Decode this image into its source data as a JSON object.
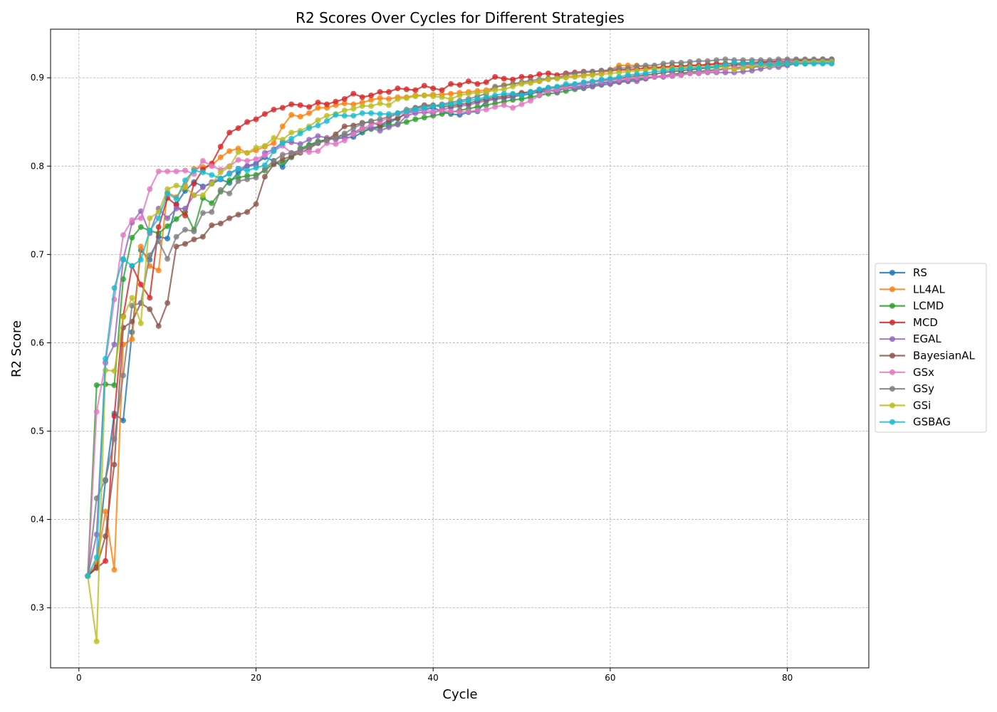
{
  "chart_data": {
    "type": "line",
    "title": "R2 Scores Over Cycles for Different Strategies",
    "xlabel": "Cycle",
    "ylabel": "R2 Score",
    "xlim": [
      -3.2,
      89.2
    ],
    "ylim": [
      0.232,
      0.955
    ],
    "xticks": [
      0,
      20,
      40,
      60,
      80
    ],
    "yticks": [
      0.3,
      0.4,
      0.5,
      0.6,
      0.7,
      0.8,
      0.9
    ],
    "grid": true,
    "legend": "center-right-outside",
    "x": {
      "start": 1,
      "end": 85
    },
    "series": [
      {
        "name": "RS",
        "color": "#1f77b4",
        "head": [
          0.336,
          0.348,
          0.444,
          0.52,
          0.512,
          0.612,
          0.705,
          0.694,
          0.72,
          0.718,
          0.757,
          0.772,
          0.782,
          0.777,
          0.78,
          0.785,
          0.781,
          0.793,
          0.8,
          0.803,
          0.81,
          0.806,
          0.799,
          0.812,
          0.818,
          0.823,
          0.827,
          0.83,
          0.832,
          0.832,
          0.833,
          0.838,
          0.843,
          0.845,
          0.849,
          0.854,
          0.86,
          0.862,
          0.864,
          0.866,
          0.862,
          0.859,
          0.858,
          0.861,
          0.862
        ],
        "tail": [
          0.874,
          0.917
        ]
      },
      {
        "name": "LL4AL",
        "color": "#ff7f0e",
        "head": [
          0.336,
          0.35,
          0.409,
          0.343,
          0.598,
          0.604,
          0.709,
          0.687,
          0.682,
          0.77,
          0.765,
          0.778,
          0.797,
          0.799,
          0.801,
          0.81,
          0.817,
          0.82,
          0.815,
          0.818,
          0.822,
          0.826,
          0.845,
          0.858,
          0.856,
          0.86,
          0.866,
          0.866,
          0.869,
          0.871,
          0.87,
          0.872,
          0.875,
          0.877,
          0.876,
          0.878,
          0.878,
          0.88,
          0.88,
          0.881,
          0.881,
          0.882,
          0.883,
          0.884,
          0.885,
          0.886,
          0.889,
          0.892,
          0.893,
          0.894,
          0.895,
          0.896,
          0.899,
          0.9,
          0.901,
          0.902,
          0.903,
          0.904,
          0.905,
          0.909,
          0.914,
          0.914,
          0.914,
          0.912
        ],
        "tail": [
          0.912,
          0.918
        ]
      },
      {
        "name": "LCMD",
        "color": "#2ca02c",
        "head": [
          0.336,
          0.552,
          0.553,
          0.552,
          0.672,
          0.719,
          0.731,
          0.727,
          0.724,
          0.732,
          0.74,
          0.748,
          0.728,
          0.764,
          0.758,
          0.771,
          0.784,
          0.787,
          0.789,
          0.79,
          0.795,
          0.803,
          0.804,
          0.81,
          0.82,
          0.824
        ],
        "tail": [
          0.828,
          0.919
        ]
      },
      {
        "name": "MCD",
        "color": "#d62728",
        "head": [
          0.336,
          0.345,
          0.353,
          0.517,
          0.63,
          0.687,
          0.666,
          0.651,
          0.731,
          0.764,
          0.756,
          0.744,
          0.78,
          0.796,
          0.803,
          0.822,
          0.838,
          0.843,
          0.85,
          0.853,
          0.859,
          0.864,
          0.866,
          0.87,
          0.869,
          0.867,
          0.872,
          0.87,
          0.873,
          0.876,
          0.882,
          0.878,
          0.88,
          0.884,
          0.884,
          0.888,
          0.887,
          0.886,
          0.891,
          0.888,
          0.886,
          0.893,
          0.892,
          0.896,
          0.893,
          0.895,
          0.901,
          0.899,
          0.898,
          0.901,
          0.901,
          0.904,
          0.905,
          0.903,
          0.905,
          0.906,
          0.907,
          0.907,
          0.908
        ],
        "tail": [
          0.908,
          0.92
        ]
      },
      {
        "name": "EGAL",
        "color": "#9467bd",
        "head": [
          0.336,
          0.383,
          0.578,
          0.598,
          0.694,
          0.736,
          0.749,
          0.724,
          0.752,
          0.741,
          0.752,
          0.752,
          0.767,
          0.776,
          0.782,
          0.786,
          0.792,
          0.797,
          0.8,
          0.801,
          0.815,
          0.819,
          0.827,
          0.827,
          0.825,
          0.83,
          0.834,
          0.832,
          0.83,
          0.833,
          0.838,
          0.843,
          0.843,
          0.84,
          0.844,
          0.847,
          0.857,
          0.86,
          0.861,
          0.86,
          0.864,
          0.866,
          0.868,
          0.869,
          0.872,
          0.874,
          0.876,
          0.877,
          0.878,
          0.882,
          0.884,
          0.886,
          0.886,
          0.884,
          0.889,
          0.888,
          0.889,
          0.89,
          0.892,
          0.893,
          0.895,
          0.896,
          0.896,
          0.899,
          0.901,
          0.901,
          0.902,
          0.903,
          0.905,
          0.905,
          0.906,
          0.906,
          0.906,
          0.906,
          0.907,
          0.908,
          0.91,
          0.912
        ],
        "tail": [
          0.912,
          0.92
        ]
      },
      {
        "name": "BayesianAL",
        "color": "#8c564b",
        "head": [
          0.336,
          0.346,
          0.381,
          0.462,
          0.617,
          0.624,
          0.645,
          0.638,
          0.619,
          0.645,
          0.709,
          0.712,
          0.717,
          0.72,
          0.733,
          0.735,
          0.741,
          0.745,
          0.748,
          0.757,
          0.788,
          0.802,
          0.808,
          0.811,
          0.815,
          0.82,
          0.826,
          0.83,
          0.836,
          0.845,
          0.846,
          0.849,
          0.85,
          0.846,
          0.852,
          0.854,
          0.86,
          0.866,
          0.869,
          0.869,
          0.867,
          0.868,
          0.87,
          0.871,
          0.874
        ],
        "tail": [
          0.876,
          0.921
        ]
      },
      {
        "name": "GSx",
        "color": "#e377c2",
        "head": [
          0.336,
          0.522,
          0.577,
          0.649,
          0.722,
          0.739,
          0.741,
          0.774,
          0.794,
          0.794,
          0.794,
          0.795,
          0.791,
          0.806,
          0.8,
          0.796,
          0.8,
          0.807,
          0.806,
          0.808,
          0.812,
          0.817,
          0.823,
          0.815,
          0.817,
          0.816,
          0.817,
          0.826,
          0.825,
          0.829,
          0.836,
          0.842,
          0.847,
          0.85,
          0.855,
          0.859,
          0.86,
          0.863,
          0.863,
          0.862,
          0.863,
          0.862,
          0.861,
          0.862,
          0.863,
          0.864,
          0.867,
          0.869,
          0.866,
          0.87,
          0.874,
          0.88,
          0.885,
          0.887,
          0.889,
          0.891,
          0.893,
          0.895,
          0.896,
          0.897,
          0.898,
          0.899,
          0.9,
          0.901,
          0.901,
          0.902,
          0.903,
          0.903,
          0.905,
          0.906,
          0.907,
          0.908,
          0.91,
          0.911,
          0.913,
          0.914,
          0.915,
          0.916,
          0.917,
          0.92
        ],
        "tail": [
          0.918,
          0.919
        ]
      },
      {
        "name": "GSy",
        "color": "#7f7f7f",
        "head": [
          0.336,
          0.424,
          0.445,
          0.491,
          0.563,
          0.642,
          0.645,
          0.699,
          0.715,
          0.695,
          0.72,
          0.728,
          0.726,
          0.747,
          0.748,
          0.773,
          0.769,
          0.783,
          0.785,
          0.787,
          0.797,
          0.806,
          0.813,
          0.815,
          0.818,
          0.822,
          0.826,
          0.829,
          0.832,
          0.837,
          0.843,
          0.848,
          0.851,
          0.853,
          0.856,
          0.86,
          0.864,
          0.866,
          0.867,
          0.868,
          0.87,
          0.872,
          0.874,
          0.876,
          0.879,
          0.882,
          0.89,
          0.891,
          0.893,
          0.895,
          0.897,
          0.898,
          0.899,
          0.9,
          0.903,
          0.905,
          0.906,
          0.907,
          0.908,
          0.909,
          0.911,
          0.911,
          0.913,
          0.914,
          0.914,
          0.916,
          0.917,
          0.917,
          0.918,
          0.919,
          0.919,
          0.92,
          0.921
        ],
        "tail": [
          0.92,
          0.921
        ]
      },
      {
        "name": "GSi",
        "color": "#bcbd22",
        "head": [
          0.336,
          0.262,
          0.569,
          0.568,
          0.629,
          0.651,
          0.622,
          0.741,
          0.748,
          0.774,
          0.778,
          0.776,
          0.767,
          0.767,
          0.78,
          0.793,
          0.799,
          0.816,
          0.815,
          0.821,
          0.823,
          0.832,
          0.83,
          0.838,
          0.84,
          0.845,
          0.852,
          0.857,
          0.859,
          0.863,
          0.865,
          0.868,
          0.868,
          0.871,
          0.869,
          0.876,
          0.877,
          0.879,
          0.88,
          0.879,
          0.878,
          0.876,
          0.88,
          0.882,
          0.883,
          0.884,
          0.886,
          0.887,
          0.89,
          0.893,
          0.894,
          0.896,
          0.898,
          0.899,
          0.9,
          0.901,
          0.902,
          0.903,
          0.904,
          0.905,
          0.906,
          0.907,
          0.908,
          0.909,
          0.91,
          0.91,
          0.911,
          0.911,
          0.912,
          0.912,
          0.912,
          0.912,
          0.912,
          0.909,
          0.911,
          0.913,
          0.914,
          0.914,
          0.915,
          0.916,
          0.917,
          0.918,
          0.918,
          0.918
        ],
        "tail": [
          0.918,
          0.918
        ]
      },
      {
        "name": "GSBAG",
        "color": "#17becf",
        "head": [
          0.336,
          0.357,
          0.582,
          0.662,
          0.695,
          0.687,
          0.694,
          0.727,
          0.741,
          0.769,
          0.763,
          0.784,
          0.795,
          0.793,
          0.79,
          0.786,
          0.791,
          0.797,
          0.795,
          0.798,
          0.801,
          0.817,
          0.826,
          0.831,
          0.837,
          0.843,
          0.846,
          0.851,
          0.858,
          0.857,
          0.857,
          0.86,
          0.86,
          0.859,
          0.859,
          0.86,
          0.862,
          0.864,
          0.866,
          0.868,
          0.869,
          0.87,
          0.872,
          0.874,
          0.876,
          0.878,
          0.88,
          0.882,
          0.882,
          0.88,
          0.884,
          0.887,
          0.889,
          0.89,
          0.893,
          0.893,
          0.895,
          0.896,
          0.898,
          0.899,
          0.901,
          0.903,
          0.904,
          0.905,
          0.907,
          0.908,
          0.909,
          0.91,
          0.911,
          0.911,
          0.912,
          0.913,
          0.915,
          0.917,
          0.916,
          0.917,
          0.916,
          0.915,
          0.916
        ],
        "tail": [
          0.916,
          0.916
        ]
      }
    ]
  }
}
